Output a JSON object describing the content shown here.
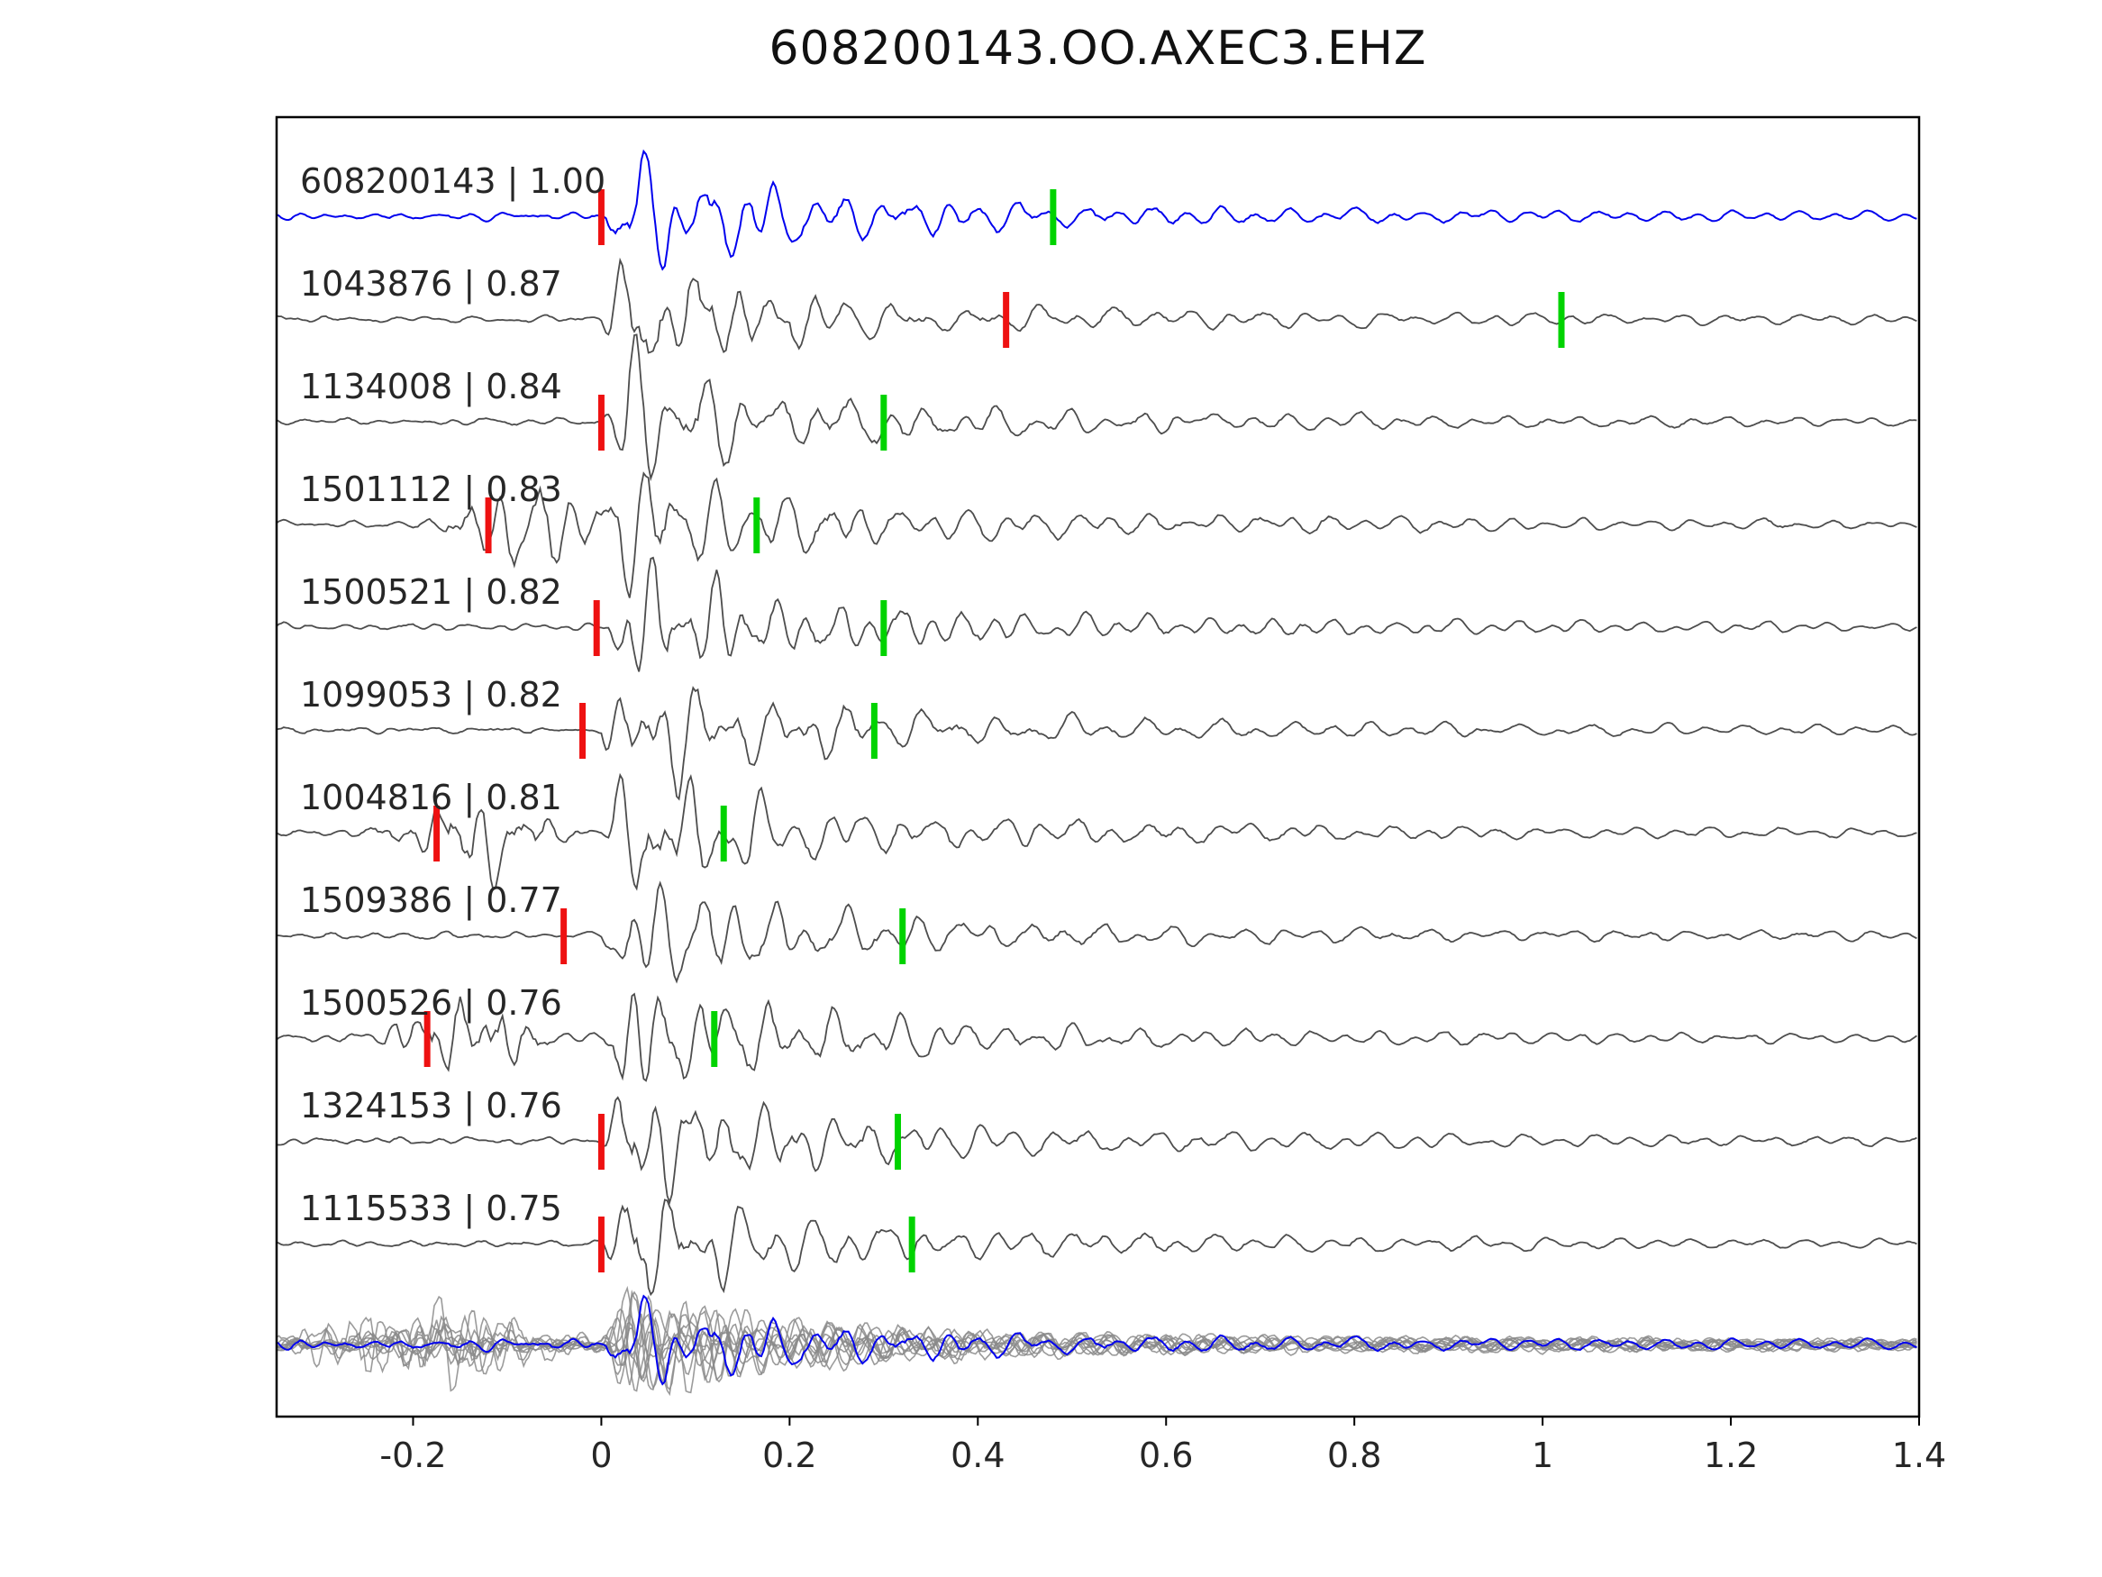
{
  "title": "608200143.OO.AXEC3.EHZ",
  "colors": {
    "reference_trace": "#0000ee",
    "match_trace": "#4d4d4d",
    "pick_red": "#ee1111",
    "pick_green": "#00d300",
    "stack_trace": "#8a8a8a",
    "axis": "#000000",
    "text": "#262626"
  },
  "chart_data": {
    "type": "line",
    "title": "608200143.OO.AXEC3.EHZ",
    "xlabel": "",
    "ylabel": "",
    "xlim": [
      -0.345,
      1.4
    ],
    "grid": false,
    "x_ticks": {
      "values": [
        -0.2,
        0,
        0.2,
        0.4,
        0.6,
        0.8,
        1,
        1.2,
        1.4
      ],
      "labels": [
        "-0.2",
        "0",
        "0.2",
        "0.4",
        "0.6",
        "0.8",
        "1",
        "1.2",
        "1.4"
      ]
    },
    "traces": [
      {
        "label": "608200143 | 1.00",
        "id": "608200143",
        "similarity": 1.0,
        "color": "blue",
        "red_pick": 0.0,
        "green_pick": 0.48
      },
      {
        "label": "1043876 | 0.87",
        "id": "1043876",
        "similarity": 0.87,
        "color": "gray",
        "red_pick": 0.43,
        "green_pick": 1.02
      },
      {
        "label": "1134008 | 0.84",
        "id": "1134008",
        "similarity": 0.84,
        "color": "gray",
        "red_pick": 0.0,
        "green_pick": 0.3
      },
      {
        "label": "1501112 | 0.83",
        "id": "1501112",
        "similarity": 0.83,
        "color": "gray",
        "red_pick": -0.12,
        "green_pick": 0.165
      },
      {
        "label": "1500521 | 0.82",
        "id": "1500521",
        "similarity": 0.82,
        "color": "gray",
        "red_pick": -0.005,
        "green_pick": 0.3
      },
      {
        "label": "1099053 | 0.82",
        "id": "1099053",
        "similarity": 0.82,
        "color": "gray",
        "red_pick": -0.02,
        "green_pick": 0.29
      },
      {
        "label": "1004816 | 0.81",
        "id": "1004816",
        "similarity": 0.81,
        "color": "gray",
        "red_pick": -0.175,
        "green_pick": 0.13
      },
      {
        "label": "1509386 | 0.77",
        "id": "1509386",
        "similarity": 0.77,
        "color": "gray",
        "red_pick": -0.04,
        "green_pick": 0.32
      },
      {
        "label": "1500526 | 0.76",
        "id": "1500526",
        "similarity": 0.76,
        "color": "gray",
        "red_pick": -0.185,
        "green_pick": 0.12
      },
      {
        "label": "1324153 | 0.76",
        "id": "1324153",
        "similarity": 0.76,
        "color": "gray",
        "red_pick": 0.0,
        "green_pick": 0.315
      },
      {
        "label": "1115533 | 0.75",
        "id": "1115533",
        "similarity": 0.75,
        "color": "gray",
        "red_pick": 0.0,
        "green_pick": 0.33
      }
    ],
    "stack": {
      "gray_trace_count": 10,
      "includes_blue_reference": true
    }
  }
}
